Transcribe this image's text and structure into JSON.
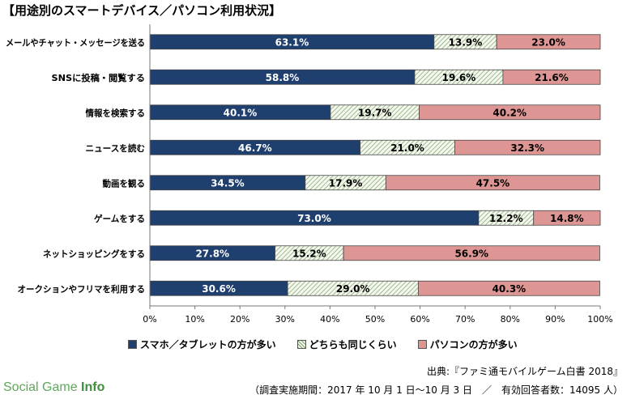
{
  "title": "【用途別のスマートデバイス／パソコン利用状況】",
  "source": "出典:『ファミ通モバイルゲーム白書 2018』",
  "note": "（調査実施期間：2017 年 10 月 1 日～10 月 3 日　／　有効回答者数：14095 人）",
  "brand": {
    "part1": "Social Game ",
    "part2": "Info"
  },
  "colors": {
    "smartphone": "#1f3f6e",
    "both": "#f4f8ee",
    "both_hatch": "#7fa06a",
    "pc": "#dd9693"
  },
  "chart_data": {
    "type": "bar",
    "orientation": "horizontal",
    "stacked": true,
    "categories": [
      "メールやチャット・メッセージを送る",
      "SNSに投稿・閲覧する",
      "情報を検索する",
      "ニュースを読む",
      "動画を観る",
      "ゲームをする",
      "ネットショッピングをする",
      "オークションやフリマを利用する"
    ],
    "series": [
      {
        "name": "スマホ／タブレットの方が多い",
        "values": [
          63.1,
          58.8,
          40.1,
          46.7,
          34.5,
          73.0,
          27.8,
          30.6
        ]
      },
      {
        "name": "どちらも同じくらい",
        "values": [
          13.9,
          19.6,
          19.7,
          21.0,
          17.9,
          12.2,
          15.2,
          29.0
        ]
      },
      {
        "name": "パソコンの方が多い",
        "values": [
          23.0,
          21.6,
          40.2,
          32.3,
          47.5,
          14.8,
          56.9,
          40.3
        ]
      }
    ],
    "xticks": [
      "0%",
      "10%",
      "20%",
      "30%",
      "40%",
      "50%",
      "60%",
      "70%",
      "80%",
      "90%",
      "100%"
    ],
    "xlim": [
      0,
      100
    ],
    "legend": "bottom"
  }
}
